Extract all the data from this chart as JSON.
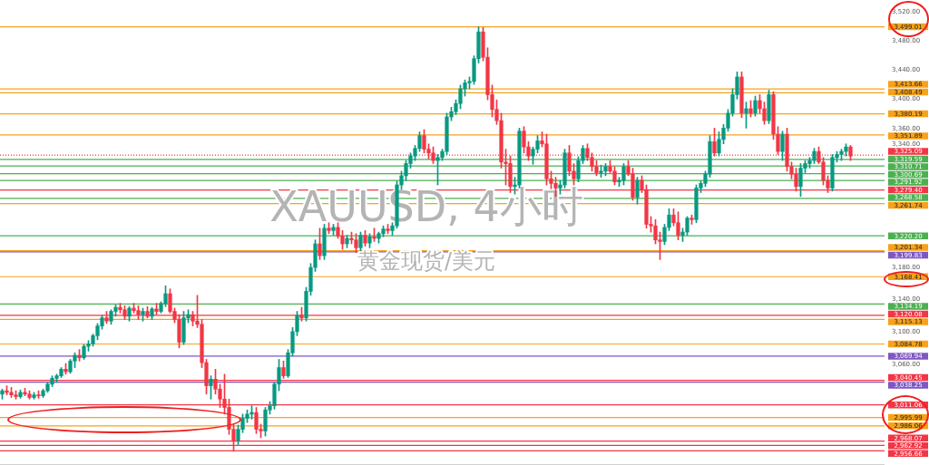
{
  "chart_data": {
    "type": "candlestick",
    "title": "XAUUSD, 4小时",
    "subtitle": "黄金现货/美元",
    "tick_labels": "y",
    "log": true,
    "categories": [
      null,
      null,
      null,
      null,
      null,
      null,
      null,
      null,
      null,
      null,
      null,
      null,
      null,
      null,
      null,
      null,
      null,
      null,
      null,
      null,
      null,
      null,
      null,
      null,
      null,
      null,
      null,
      null,
      null,
      null,
      null,
      null,
      null,
      null,
      null,
      null,
      null,
      null,
      null,
      null,
      null,
      null,
      null,
      null,
      null,
      null,
      null,
      null,
      null,
      null,
      null,
      null,
      null,
      null,
      null,
      null,
      null,
      null,
      null,
      null,
      null,
      null,
      null,
      null,
      null,
      null,
      null,
      null,
      null,
      null,
      null,
      null,
      null,
      null,
      null,
      null,
      null,
      null,
      null,
      null,
      null,
      null,
      null,
      null,
      null,
      null,
      null,
      null,
      null,
      null,
      null,
      null,
      null,
      null,
      null,
      null,
      null,
      null,
      null,
      null,
      null,
      null,
      null,
      null,
      null,
      null,
      null,
      null,
      null,
      null,
      null,
      null,
      null,
      null,
      null,
      null,
      null,
      null,
      null,
      null,
      null,
      null,
      null,
      null,
      null,
      null,
      null,
      null,
      null,
      null,
      null,
      null,
      null,
      null,
      null,
      null,
      null,
      null,
      null,
      null,
      null,
      null,
      null,
      null,
      null,
      null,
      null,
      null,
      null,
      null,
      null,
      null,
      null,
      null,
      null,
      null,
      null,
      null,
      null,
      null,
      null,
      null,
      null,
      null,
      null,
      null,
      null,
      null,
      null,
      null,
      null,
      null,
      null,
      null,
      null,
      null,
      null,
      null,
      null,
      null,
      null,
      null,
      null,
      null,
      null,
      null,
      null,
      null,
      null,
      null,
      null,
      null,
      null,
      null,
      null
    ],
    "ohlc": [
      [
        3024,
        3030,
        3018,
        3028
      ],
      [
        3028,
        3034,
        3023,
        3026
      ],
      [
        3026,
        3032,
        3020,
        3023
      ],
      [
        3023,
        3028,
        3018,
        3021
      ],
      [
        3021,
        3029,
        3019,
        3026
      ],
      [
        3026,
        3031,
        3022,
        3024
      ],
      [
        3024,
        3028,
        3018,
        3020
      ],
      [
        3020,
        3026,
        3018,
        3023
      ],
      [
        3023,
        3028,
        3019,
        3022
      ],
      [
        3022,
        3030,
        3020,
        3028
      ],
      [
        3028,
        3038,
        3026,
        3036
      ],
      [
        3036,
        3046,
        3033,
        3043
      ],
      [
        3043,
        3048,
        3038,
        3046
      ],
      [
        3046,
        3056,
        3044,
        3054
      ],
      [
        3054,
        3061,
        3048,
        3051
      ],
      [
        3051,
        3066,
        3049,
        3064
      ],
      [
        3064,
        3074,
        3056,
        3071
      ],
      [
        3071,
        3078,
        3064,
        3068
      ],
      [
        3068,
        3084,
        3066,
        3082
      ],
      [
        3082,
        3089,
        3076,
        3085
      ],
      [
        3085,
        3097,
        3082,
        3095
      ],
      [
        3095,
        3110,
        3090,
        3107
      ],
      [
        3107,
        3120,
        3103,
        3117
      ],
      [
        3117,
        3125,
        3110,
        3113
      ],
      [
        3113,
        3127,
        3109,
        3125
      ],
      [
        3125,
        3133,
        3119,
        3130
      ],
      [
        3130,
        3135,
        3123,
        3127
      ],
      [
        3127,
        3132,
        3115,
        3119
      ],
      [
        3119,
        3131,
        3113,
        3129
      ],
      [
        3129,
        3135,
        3123,
        3126
      ],
      [
        3126,
        3132,
        3115,
        3121
      ],
      [
        3121,
        3129,
        3113,
        3125
      ],
      [
        3125,
        3131,
        3117,
        3119
      ],
      [
        3119,
        3130,
        3115,
        3128
      ],
      [
        3128,
        3135,
        3121,
        3125
      ],
      [
        3125,
        3137,
        3123,
        3135
      ],
      [
        3135,
        3157,
        3131,
        3147
      ],
      [
        3147,
        3153,
        3123,
        3125
      ],
      [
        3125,
        3129,
        3111,
        3115
      ],
      [
        3115,
        3121,
        3080,
        3087
      ],
      [
        3087,
        3125,
        3084,
        3117
      ],
      [
        3117,
        3127,
        3111,
        3121
      ],
      [
        3121,
        3125,
        3107,
        3113
      ],
      [
        3113,
        3145,
        3105,
        3109
      ],
      [
        3109,
        3115,
        3056,
        3062
      ],
      [
        3062,
        3066,
        3024,
        3034
      ],
      [
        3034,
        3046,
        3018,
        3042
      ],
      [
        3042,
        3054,
        3024,
        3030
      ],
      [
        3030,
        3036,
        3008,
        3018
      ],
      [
        3018,
        3048,
        3000,
        3008
      ],
      [
        3008,
        3018,
        2976,
        2982
      ],
      [
        2982,
        2988,
        2956,
        2969
      ],
      [
        2969,
        2987,
        2964,
        2982
      ],
      [
        2982,
        3000,
        2978,
        2995
      ],
      [
        2995,
        3005,
        2990,
        3000
      ],
      [
        3000,
        3010,
        2994,
        3002
      ],
      [
        3002,
        3008,
        2977,
        2982
      ],
      [
        2982,
        2988,
        2972,
        2980
      ],
      [
        2980,
        3008,
        2974,
        3005
      ],
      [
        3005,
        3015,
        3000,
        3010
      ],
      [
        3010,
        3038,
        3006,
        3036
      ],
      [
        3036,
        3066,
        3028,
        3056
      ],
      [
        3056,
        3064,
        3043,
        3046
      ],
      [
        3046,
        3078,
        3044,
        3074
      ],
      [
        3074,
        3105,
        3070,
        3100
      ],
      [
        3100,
        3125,
        3095,
        3120
      ],
      [
        3120,
        3130,
        3113,
        3117
      ],
      [
        3117,
        3155,
        3113,
        3150
      ],
      [
        3150,
        3185,
        3145,
        3180
      ],
      [
        3180,
        3215,
        3175,
        3210
      ],
      [
        3210,
        3230,
        3190,
        3195
      ],
      [
        3195,
        3235,
        3190,
        3230
      ],
      [
        3230,
        3237,
        3223,
        3227
      ],
      [
        3227,
        3235,
        3221,
        3231
      ],
      [
        3231,
        3237,
        3217,
        3220
      ],
      [
        3220,
        3227,
        3203,
        3210
      ],
      [
        3210,
        3221,
        3205,
        3217
      ],
      [
        3217,
        3225,
        3210,
        3215
      ],
      [
        3215,
        3223,
        3199,
        3205
      ],
      [
        3205,
        3225,
        3201,
        3221
      ],
      [
        3221,
        3227,
        3207,
        3211
      ],
      [
        3211,
        3223,
        3205,
        3219
      ],
      [
        3219,
        3230,
        3213,
        3217
      ],
      [
        3217,
        3225,
        3211,
        3223
      ],
      [
        3223,
        3233,
        3219,
        3229
      ],
      [
        3229,
        3235,
        3223,
        3227
      ],
      [
        3227,
        3237,
        3221,
        3233
      ],
      [
        3233,
        3291,
        3230,
        3286
      ],
      [
        3286,
        3304,
        3280,
        3298
      ],
      [
        3298,
        3318,
        3292,
        3314
      ],
      [
        3314,
        3328,
        3308,
        3324
      ],
      [
        3324,
        3338,
        3318,
        3334
      ],
      [
        3334,
        3356,
        3330,
        3351
      ],
      [
        3351,
        3359,
        3328,
        3333
      ],
      [
        3333,
        3340,
        3320,
        3328
      ],
      [
        3328,
        3336,
        3314,
        3318
      ],
      [
        3318,
        3326,
        3286,
        3322
      ],
      [
        3322,
        3333,
        3318,
        3330
      ],
      [
        3330,
        3381,
        3326,
        3376
      ],
      [
        3376,
        3389,
        3371,
        3383
      ],
      [
        3383,
        3399,
        3379,
        3394
      ],
      [
        3394,
        3419,
        3387,
        3414
      ],
      [
        3414,
        3426,
        3404,
        3422
      ],
      [
        3422,
        3430,
        3414,
        3424
      ],
      [
        3424,
        3459,
        3420,
        3455
      ],
      [
        3455,
        3499,
        3449,
        3492
      ],
      [
        3492,
        3498,
        3452,
        3457
      ],
      [
        3457,
        3470,
        3399,
        3406
      ],
      [
        3406,
        3419,
        3376,
        3386
      ],
      [
        3386,
        3399,
        3366,
        3371
      ],
      [
        3371,
        3381,
        3308,
        3316
      ],
      [
        3316,
        3333,
        3286,
        3314
      ],
      [
        3314,
        3324,
        3276,
        3284
      ],
      [
        3284,
        3296,
        3274,
        3286
      ],
      [
        3286,
        3361,
        3282,
        3357
      ],
      [
        3357,
        3363,
        3328,
        3336
      ],
      [
        3336,
        3343,
        3318,
        3324
      ],
      [
        3324,
        3336,
        3313,
        3333
      ],
      [
        3333,
        3351,
        3328,
        3344
      ],
      [
        3344,
        3356,
        3336,
        3340
      ],
      [
        3340,
        3353,
        3286,
        3294
      ],
      [
        3294,
        3304,
        3281,
        3288
      ],
      [
        3288,
        3296,
        3271,
        3282
      ],
      [
        3282,
        3292,
        3274,
        3286
      ],
      [
        3286,
        3333,
        3282,
        3328
      ],
      [
        3328,
        3338,
        3298,
        3304
      ],
      [
        3304,
        3314,
        3286,
        3294
      ],
      [
        3294,
        3323,
        3290,
        3318
      ],
      [
        3318,
        3338,
        3314,
        3334
      ],
      [
        3334,
        3340,
        3318,
        3322
      ],
      [
        3322,
        3328,
        3304,
        3310
      ],
      [
        3310,
        3318,
        3298,
        3302
      ],
      [
        3302,
        3312,
        3296,
        3304
      ],
      [
        3304,
        3314,
        3298,
        3310
      ],
      [
        3310,
        3318,
        3302,
        3304
      ],
      [
        3304,
        3310,
        3286,
        3290
      ],
      [
        3290,
        3296,
        3284,
        3292
      ],
      [
        3292,
        3314,
        3286,
        3310
      ],
      [
        3310,
        3318,
        3298,
        3300
      ],
      [
        3300,
        3308,
        3266,
        3270
      ],
      [
        3270,
        3296,
        3261,
        3292
      ],
      [
        3292,
        3298,
        3276,
        3280
      ],
      [
        3280,
        3286,
        3230,
        3235
      ],
      [
        3235,
        3245,
        3225,
        3233
      ],
      [
        3233,
        3241,
        3210,
        3215
      ],
      [
        3215,
        3225,
        3190,
        3213
      ],
      [
        3213,
        3235,
        3209,
        3231
      ],
      [
        3231,
        3255,
        3227,
        3247
      ],
      [
        3247,
        3255,
        3233,
        3237
      ],
      [
        3237,
        3251,
        3215,
        3221
      ],
      [
        3221,
        3230,
        3213,
        3225
      ],
      [
        3225,
        3245,
        3221,
        3243
      ],
      [
        3243,
        3247,
        3235,
        3241
      ],
      [
        3241,
        3286,
        3237,
        3282
      ],
      [
        3282,
        3291,
        3276,
        3288
      ],
      [
        3288,
        3304,
        3284,
        3300
      ],
      [
        3300,
        3351,
        3296,
        3343
      ],
      [
        3343,
        3361,
        3324,
        3328
      ],
      [
        3328,
        3356,
        3324,
        3346
      ],
      [
        3346,
        3366,
        3340,
        3361
      ],
      [
        3361,
        3386,
        3357,
        3381
      ],
      [
        3381,
        3414,
        3377,
        3406
      ],
      [
        3406,
        3437,
        3400,
        3430
      ],
      [
        3430,
        3437,
        3375,
        3381
      ],
      [
        3381,
        3396,
        3361,
        3387
      ],
      [
        3387,
        3398,
        3376,
        3381
      ],
      [
        3381,
        3404,
        3377,
        3398
      ],
      [
        3398,
        3406,
        3381,
        3387
      ],
      [
        3387,
        3396,
        3366,
        3371
      ],
      [
        3371,
        3412,
        3367,
        3406
      ],
      [
        3406,
        3410,
        3346,
        3353
      ],
      [
        3353,
        3363,
        3326,
        3330
      ],
      [
        3330,
        3357,
        3318,
        3353
      ],
      [
        3353,
        3361,
        3304,
        3310
      ],
      [
        3310,
        3316,
        3294,
        3300
      ],
      [
        3300,
        3308,
        3278,
        3284
      ],
      [
        3284,
        3314,
        3271,
        3308
      ],
      [
        3308,
        3318,
        3302,
        3314
      ],
      [
        3314,
        3322,
        3308,
        3318
      ],
      [
        3318,
        3334,
        3314,
        3330
      ],
      [
        3330,
        3336,
        3314,
        3316
      ],
      [
        3316,
        3322,
        3286,
        3292
      ],
      [
        3292,
        3298,
        3276,
        3282
      ],
      [
        3282,
        3326,
        3278,
        3322
      ],
      [
        3322,
        3330,
        3316,
        3326
      ],
      [
        3326,
        3333,
        3318,
        3330
      ],
      [
        3330,
        3340,
        3324,
        3336
      ],
      [
        3336,
        3338,
        3318,
        3324
      ],
      null,
      null,
      null,
      null,
      null,
      null,
      null
    ],
    "ylim": [
      2940,
      3520
    ],
    "yticks": [
      {
        "value": 3520,
        "label": "3,520.00"
      },
      {
        "value": 3480,
        "label": "3,480.00"
      },
      {
        "value": 3440,
        "label": "3,440.00"
      },
      {
        "value": 3400,
        "label": "3,400.00"
      },
      {
        "value": 3360,
        "label": "3,360.00"
      },
      {
        "value": 3340,
        "label": "3,340.00"
      },
      {
        "value": 3180,
        "label": "3,180.00"
      },
      {
        "value": 3140,
        "label": "3,140.00"
      },
      {
        "value": 3100,
        "label": "3,100.00"
      },
      {
        "value": 3060,
        "label": "3,060.00"
      }
    ],
    "ref_lines": [
      {
        "axis": "y",
        "value": 3499.01,
        "label": "3,499.01",
        "color": "#f7a21b"
      },
      {
        "axis": "y",
        "value": 3413.66,
        "label": "3,413.66",
        "color": "#f7a21b"
      },
      {
        "axis": "y",
        "value": 3408.49,
        "label": "3,408.49",
        "color": "#f7a21b"
      },
      {
        "axis": "y",
        "value": 3380.19,
        "label": "3,380.19",
        "color": "#f7a21b"
      },
      {
        "axis": "y",
        "value": 3351.89,
        "label": "3,351.89",
        "color": "#f7a21b"
      },
      {
        "axis": "y",
        "value": 3325.09,
        "label": "3,325.09",
        "color": "#f23645",
        "line_style": "dotted"
      },
      {
        "axis": "y",
        "value": 3319.59,
        "label": "3,319.59",
        "color": "#4caf50"
      },
      {
        "axis": "y",
        "value": 3310.71,
        "label": "3,310.71",
        "color": "#4caf50"
      },
      {
        "axis": "y",
        "value": 3300.69,
        "label": "3,300.69",
        "color": "#4caf50"
      },
      {
        "axis": "y",
        "value": 3291.92,
        "label": "3,291.92",
        "color": "#4caf50"
      },
      {
        "axis": "y",
        "value": 3279.4,
        "label": "3,279.40",
        "color": "#f23645"
      },
      {
        "axis": "y",
        "value": 3268.58,
        "label": "3,268.58",
        "color": "#4caf50"
      },
      {
        "axis": "y",
        "value": 3261.74,
        "label": "3,261.74",
        "color": "#f7a21b"
      },
      {
        "axis": "y",
        "value": 3220.2,
        "label": "3,220.20",
        "color": "#4caf50"
      },
      {
        "axis": "y",
        "value": 3201.34,
        "label": "3,201.34",
        "color": "#f7a21b"
      },
      {
        "axis": "y",
        "value": 3199.83,
        "label": "3,199.83",
        "color": "#7e57c2"
      },
      {
        "axis": "y",
        "value": 3168.41,
        "label": "3,168.41",
        "color": "#f7a21b"
      },
      {
        "axis": "y",
        "value": 3134.19,
        "label": "3,134.19",
        "color": "#4caf50"
      },
      {
        "axis": "y",
        "value": 3120.08,
        "label": "3,120.08",
        "color": "#f23645"
      },
      {
        "axis": "y",
        "value": 3115.13,
        "label": "3,115.13",
        "color": "#f7a21b"
      },
      {
        "axis": "y",
        "value": 3084.78,
        "label": "3,084.78",
        "color": "#f7a21b"
      },
      {
        "axis": "y",
        "value": 3069.94,
        "label": "3,069.94",
        "color": "#7e57c2"
      },
      {
        "axis": "y",
        "value": 3040.45,
        "label": "3,040.45",
        "color": "#f23645"
      },
      {
        "axis": "y",
        "value": 3038.25,
        "label": "3,038.25",
        "color": "#7e57c2"
      },
      {
        "axis": "y",
        "value": 3011.06,
        "label": "3,011.06",
        "color": "#f23645"
      },
      {
        "axis": "y",
        "value": 2995.99,
        "label": "2,995.99",
        "color": "#f7a21b"
      },
      {
        "axis": "y",
        "value": 2986.06,
        "label": "2,986.06",
        "color": "#f7a21b"
      },
      {
        "axis": "y",
        "value": 2968.07,
        "label": "2,968.07",
        "color": "#f23645"
      },
      {
        "axis": "y",
        "value": 2962.92,
        "label": "2,962.92",
        "color": "#f23645"
      },
      {
        "axis": "y",
        "value": 2956.66,
        "label": "2,956.66",
        "color": "#f23645"
      }
    ]
  }
}
